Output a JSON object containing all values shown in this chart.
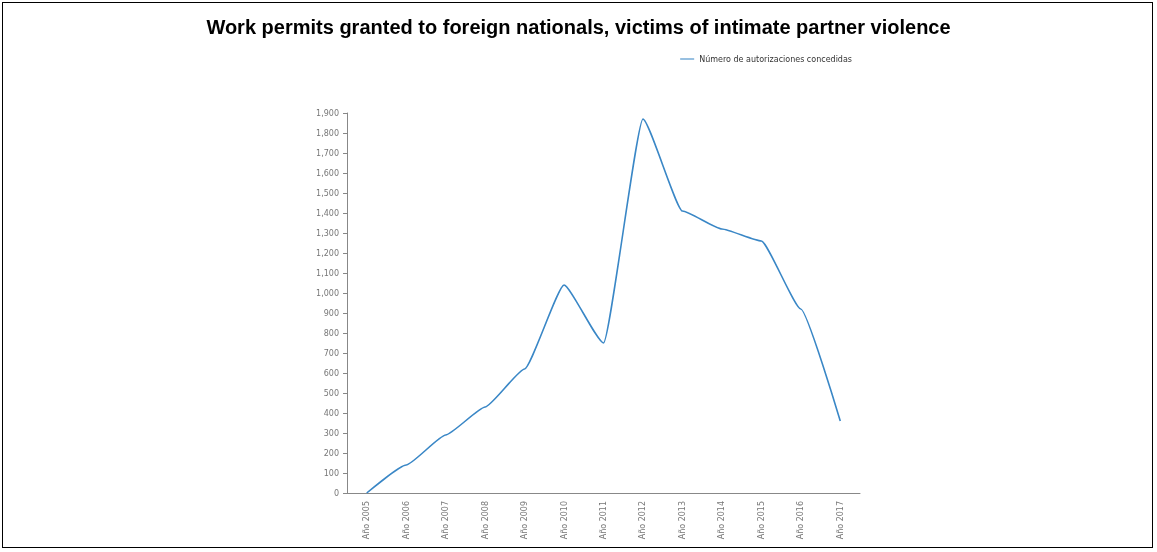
{
  "chart_data": {
    "type": "line",
    "title": "Work permits granted to foreign nationals, victims of intimate partner violence",
    "categories": [
      "Año 2005",
      "Año 2006",
      "Año 2007",
      "Año 2008",
      "Año 2009",
      "Año 2010",
      "Año 2011",
      "Año 2012",
      "Año 2013",
      "Año 2014",
      "Año 2015",
      "Año 2016",
      "Año 2017"
    ],
    "series": [
      {
        "name": "Número de autorizaciones concedidas",
        "color": "#3a87c6",
        "values": [
          0,
          140,
          290,
          430,
          620,
          1040,
          750,
          1870,
          1410,
          1320,
          1260,
          920,
          360
        ]
      }
    ],
    "ylim": [
      0,
      1900
    ],
    "yticks": [
      0,
      100,
      200,
      300,
      400,
      500,
      600,
      700,
      800,
      900,
      {
        "value": 1000,
        "label": "1,000"
      },
      {
        "value": 1100,
        "label": "1,100"
      },
      {
        "value": 1200,
        "label": "1,200"
      },
      {
        "value": 1300,
        "label": "1,300"
      },
      {
        "value": 1400,
        "label": "1,400"
      },
      {
        "value": 1500,
        "label": "1,500"
      },
      {
        "value": 1600,
        "label": "1,600"
      },
      {
        "value": 1700,
        "label": "1,700"
      },
      {
        "value": 1800,
        "label": "1,800"
      },
      {
        "value": 1900,
        "label": "1,900"
      }
    ],
    "grid": false,
    "legend": "top right",
    "marker": "none",
    "line_style": "solid"
  }
}
